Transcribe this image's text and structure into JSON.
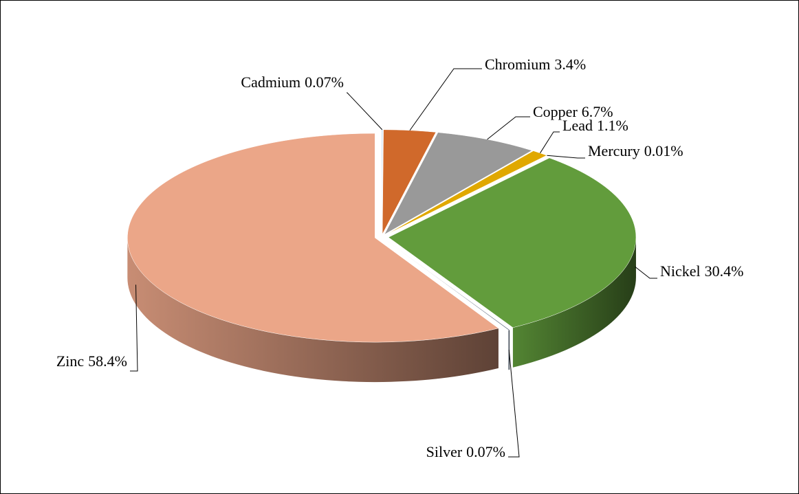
{
  "chart_data": {
    "type": "pie3d",
    "categories": [
      "Cadmium",
      "Chromium",
      "Copper",
      "Lead",
      "Mercury",
      "Nickel",
      "Silver",
      "Zinc"
    ],
    "values": [
      0.07,
      3.4,
      6.7,
      1.1,
      0.01,
      30.4,
      0.07,
      58.4
    ],
    "value_labels": [
      "0.07%",
      "3.4%",
      "6.7%",
      "1.1%",
      "0.01%",
      "30.4%",
      "0.07%",
      "58.4%"
    ],
    "colors": [
      "#bdd7ee",
      "#d0692b",
      "#999999",
      "#e0a800",
      "#2e5f8a",
      "#629c3c",
      "#44546a",
      "#eba688"
    ]
  }
}
